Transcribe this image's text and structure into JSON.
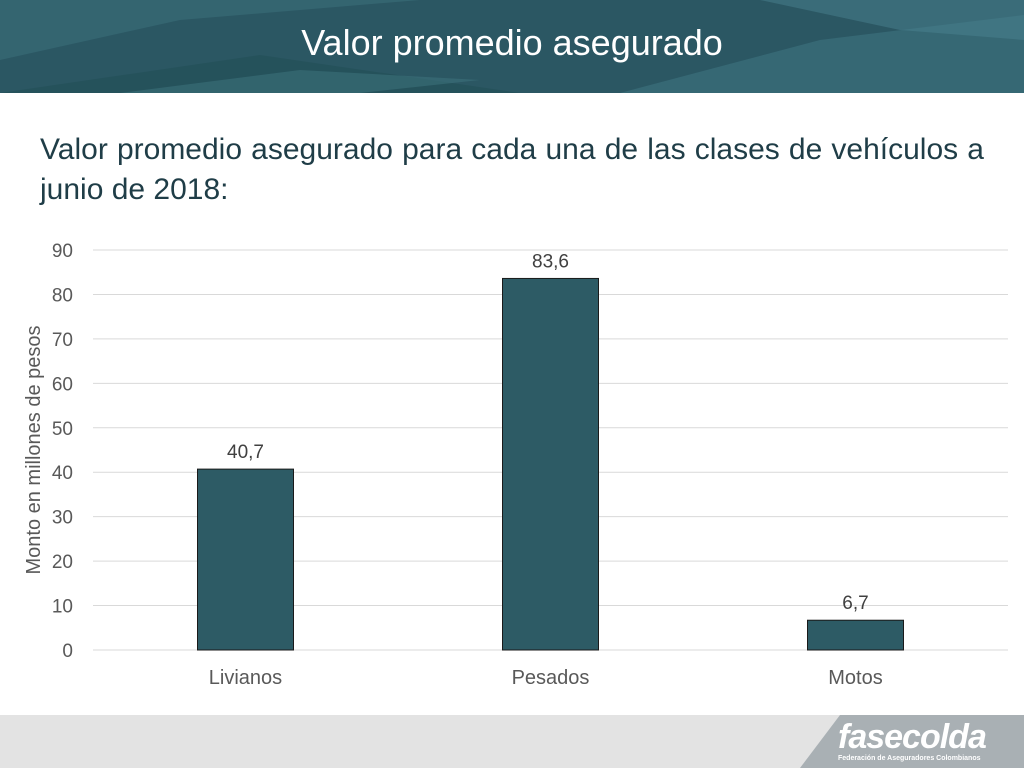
{
  "header": {
    "title": "Valor promedio asegurado"
  },
  "subtitle": "Valor promedio asegurado para cada una de las clases de vehículos a junio de 2018:",
  "logo": {
    "name": "fasecolda",
    "tagline": "Federación de Aseguradores Colombianos"
  },
  "colors": {
    "header": "#2b5763",
    "bar": "#2d5b65",
    "footer": "#e3e3e3",
    "logo_band": "#a9b0b4"
  },
  "chart_data": {
    "type": "bar",
    "title": "",
    "xlabel": "",
    "ylabel": "Monto  en millones de pesos",
    "categories": [
      "Livianos",
      "Pesados",
      "Motos"
    ],
    "values": [
      40.7,
      83.6,
      6.7
    ],
    "data_labels": [
      "40,7",
      "83,6",
      "6,7"
    ],
    "ylim": [
      0,
      90
    ],
    "yticks": [
      0,
      10,
      20,
      30,
      40,
      50,
      60,
      70,
      80,
      90
    ],
    "grid": true,
    "legend": "none"
  }
}
